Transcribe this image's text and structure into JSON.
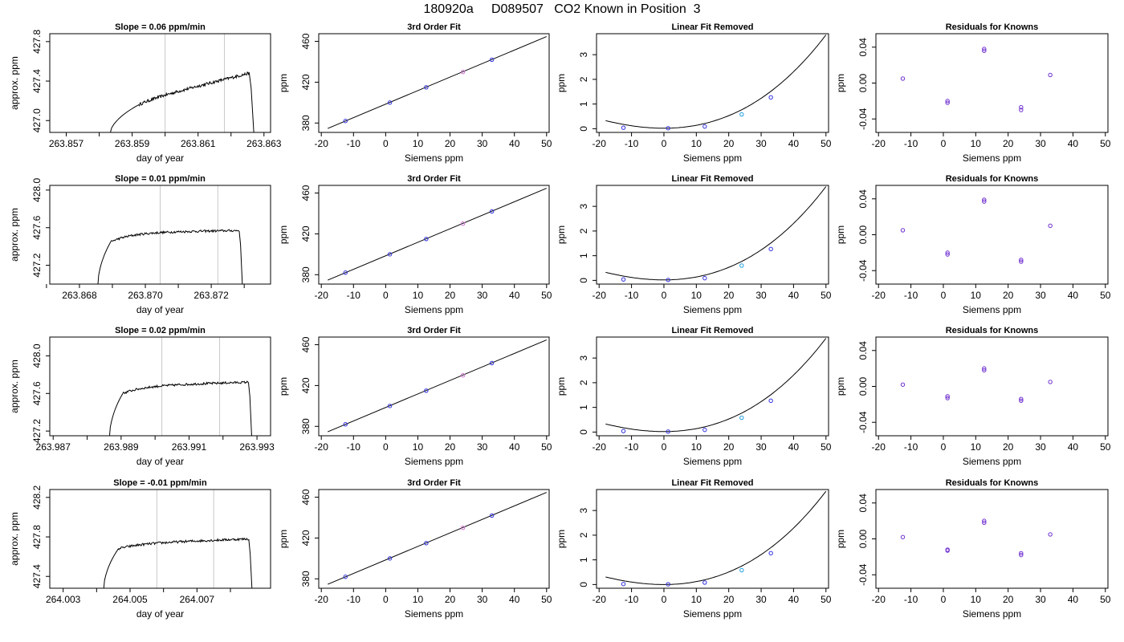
{
  "page": {
    "title": "180920a     D089507   CO2 Known in Position  3"
  },
  "chart_data": [
    {
      "id": "r1-series",
      "type": "line",
      "title": "Slope =  0.06  ppm/min",
      "xlabel": "day of year",
      "ylabel": "approx. ppm",
      "xlim": [
        263.8565,
        263.8632
      ],
      "ylim": [
        426.88,
        427.88
      ],
      "xticks": [
        "263.857",
        "263.858",
        "263.859",
        "263.860",
        "263.861",
        "263.862",
        "263.863"
      ],
      "xtick_labels": [
        "263.857",
        "",
        "263.859",
        "",
        "263.861",
        "",
        "263.863"
      ],
      "yticks": [
        "427.0",
        "427.4",
        "427.8"
      ],
      "vlines": [
        263.86,
        263.8618
      ],
      "trace": {
        "start": 263.8583,
        "rise_end": 263.8592,
        "plateau_end": 263.86255,
        "end": 263.8627,
        "y_low": 426.83,
        "y_rise": 427.16,
        "y_plateau_start": 427.2,
        "y_plateau_end": 427.48,
        "y_drop": 426.83,
        "noise": 0.015
      }
    },
    {
      "id": "r1-fit",
      "type": "line",
      "title": "3rd Order Fit",
      "xlabel": "Siemens ppm",
      "ylabel": "ppm",
      "xlim": [
        -20.8,
        50.8
      ],
      "ylim": [
        370.8,
        467.5
      ],
      "xticks": [
        "-20",
        "-10",
        "0",
        "10",
        "20",
        "30",
        "40",
        "50"
      ],
      "yticks": [
        "380",
        "420",
        "460"
      ],
      "line": {
        "x1": -18,
        "y1": 374.7,
        "x2": 50,
        "y2": 464.7
      },
      "points": [
        {
          "x": -12.5,
          "y": 382,
          "color": "#3030e0"
        },
        {
          "x": 1.3,
          "y": 400,
          "color": "#3030e0"
        },
        {
          "x": 12.6,
          "y": 415,
          "color": "#3030e0"
        },
        {
          "x": 24,
          "y": 430,
          "color": "#d070d0"
        },
        {
          "x": 33,
          "y": 442,
          "color": "#3030e0"
        }
      ]
    },
    {
      "id": "r1-linear",
      "type": "line",
      "title": "Linear Fit Removed",
      "xlabel": "Siemens ppm",
      "ylabel": "ppm",
      "xlim": [
        -20.8,
        50.8
      ],
      "ylim": [
        -0.15,
        3.85
      ],
      "xticks": [
        "-20",
        "-10",
        "0",
        "10",
        "20",
        "30",
        "40",
        "50"
      ],
      "yticks": [
        "0",
        "1",
        "2",
        "3"
      ],
      "curve": {
        "a": 0.02,
        "b": 0.0001,
        "c": 0.0011,
        "d": 8.2e-06,
        "x_start": -18,
        "x_end": 50
      },
      "points": [
        {
          "x": -12.5,
          "y": 0.04,
          "color": "#3030e0"
        },
        {
          "x": 1.3,
          "y": 0.02,
          "color": "#3030e0"
        },
        {
          "x": 12.6,
          "y": 0.09,
          "color": "#3030e0"
        },
        {
          "x": 24,
          "y": 0.58,
          "color": "#20a0e0"
        },
        {
          "x": 33,
          "y": 1.27,
          "color": "#3030e0"
        }
      ]
    },
    {
      "id": "r1-resid",
      "type": "scatter",
      "title": "Residuals for Knowns",
      "xlabel": "Siemens ppm",
      "ylabel": "ppm",
      "xlim": [
        -20.8,
        50.8
      ],
      "ylim": [
        -0.055,
        0.055
      ],
      "xticks": [
        "-20",
        "-10",
        "0",
        "10",
        "20",
        "30",
        "40",
        "50"
      ],
      "yticks": [
        "-0.04",
        "0.00",
        "0.04"
      ],
      "points": [
        {
          "x": -12.5,
          "y": 0.005,
          "color": "#7030d0"
        },
        {
          "x": 1.3,
          "y": -0.02,
          "color": "#7030d0"
        },
        {
          "x": 1.3,
          "y": -0.022,
          "color": "#7030d0"
        },
        {
          "x": 12.6,
          "y": 0.036,
          "color": "#7030d0"
        },
        {
          "x": 12.6,
          "y": 0.038,
          "color": "#7030d0"
        },
        {
          "x": 24,
          "y": -0.027,
          "color": "#7030d0"
        },
        {
          "x": 24,
          "y": -0.03,
          "color": "#7030d0"
        },
        {
          "x": 33,
          "y": 0.009,
          "color": "#7030d0"
        }
      ]
    },
    {
      "id": "r2-series",
      "type": "line",
      "title": "Slope =  0.01  ppm/min",
      "xlabel": "day of year",
      "ylabel": "approx. ppm",
      "xlim": [
        263.8671,
        263.8738
      ],
      "ylim": [
        427.0,
        428.05
      ],
      "xticks": [
        "263.867",
        "263.868",
        "263.869",
        "263.870",
        "263.871",
        "263.872",
        "263.873"
      ],
      "xtick_labels": [
        "",
        "263.868",
        "",
        "263.870",
        "",
        "263.872",
        ""
      ],
      "yticks": [
        "427.2",
        "427.6",
        "428.0"
      ],
      "vlines": [
        263.87045,
        263.8722
      ],
      "trace": {
        "start": 263.86855,
        "rise_end": 263.86895,
        "plateau_end": 263.87285,
        "end": 263.87295,
        "y_low": 426.95,
        "y_rise": 427.45,
        "y_plateau_start": 427.55,
        "y_plateau_end": 427.57,
        "y_drop": 426.95,
        "noise": 0.012
      }
    },
    {
      "id": "r2-fit",
      "type": "line",
      "title": "3rd Order Fit",
      "xlabel": "Siemens ppm",
      "ylabel": "ppm",
      "xlim": [
        -20.8,
        50.8
      ],
      "ylim": [
        370.8,
        467.5
      ],
      "xticks": [
        "-20",
        "-10",
        "0",
        "10",
        "20",
        "30",
        "40",
        "50"
      ],
      "yticks": [
        "380",
        "420",
        "460"
      ],
      "line": {
        "x1": -18,
        "y1": 374.7,
        "x2": 50,
        "y2": 464.7
      },
      "points": [
        {
          "x": -12.5,
          "y": 382,
          "color": "#3030e0"
        },
        {
          "x": 1.3,
          "y": 400,
          "color": "#3030e0"
        },
        {
          "x": 12.6,
          "y": 415,
          "color": "#3030e0"
        },
        {
          "x": 24,
          "y": 430,
          "color": "#d070d0"
        },
        {
          "x": 33,
          "y": 442,
          "color": "#3030e0"
        }
      ]
    },
    {
      "id": "r2-linear",
      "type": "line",
      "title": "Linear Fit Removed",
      "xlabel": "Siemens ppm",
      "ylabel": "ppm",
      "xlim": [
        -20.8,
        50.8
      ],
      "ylim": [
        -0.15,
        3.85
      ],
      "xticks": [
        "-20",
        "-10",
        "0",
        "10",
        "20",
        "30",
        "40",
        "50"
      ],
      "yticks": [
        "0",
        "1",
        "2",
        "3"
      ],
      "curve": {
        "a": 0.02,
        "b": 0.0001,
        "c": 0.0011,
        "d": 8.2e-06,
        "x_start": -18,
        "x_end": 50
      },
      "points": [
        {
          "x": -12.5,
          "y": 0.04,
          "color": "#3030e0"
        },
        {
          "x": 1.3,
          "y": 0.02,
          "color": "#3030e0"
        },
        {
          "x": 12.6,
          "y": 0.09,
          "color": "#3030e0"
        },
        {
          "x": 24,
          "y": 0.6,
          "color": "#20a0e0"
        },
        {
          "x": 33,
          "y": 1.27,
          "color": "#3030e0"
        }
      ]
    },
    {
      "id": "r2-resid",
      "type": "scatter",
      "title": "Residuals for Knowns",
      "xlabel": "Siemens ppm",
      "ylabel": "ppm",
      "xlim": [
        -20.8,
        50.8
      ],
      "ylim": [
        -0.055,
        0.055
      ],
      "xticks": [
        "-20",
        "-10",
        "0",
        "10",
        "20",
        "30",
        "40",
        "50"
      ],
      "yticks": [
        "-0.04",
        "0.00",
        "0.04"
      ],
      "points": [
        {
          "x": -12.5,
          "y": 0.005,
          "color": "#7030d0"
        },
        {
          "x": 1.3,
          "y": -0.02,
          "color": "#7030d0"
        },
        {
          "x": 1.3,
          "y": -0.022,
          "color": "#7030d0"
        },
        {
          "x": 12.6,
          "y": 0.037,
          "color": "#7030d0"
        },
        {
          "x": 12.6,
          "y": 0.039,
          "color": "#7030d0"
        },
        {
          "x": 24,
          "y": -0.028,
          "color": "#7030d0"
        },
        {
          "x": 24,
          "y": -0.03,
          "color": "#7030d0"
        },
        {
          "x": 33,
          "y": 0.01,
          "color": "#7030d0"
        }
      ]
    },
    {
      "id": "r3-series",
      "type": "line",
      "title": "Slope =  0.02  ppm/min",
      "xlabel": "day of year",
      "ylabel": "approx. ppm",
      "xlim": [
        263.9869,
        263.9934
      ],
      "ylim": [
        427.15,
        428.2
      ],
      "xticks": [
        "263.987",
        "263.988",
        "263.989",
        "263.990",
        "263.991",
        "263.992",
        "263.993"
      ],
      "xtick_labels": [
        "263.987",
        "",
        "263.989",
        "",
        "263.991",
        "",
        "263.993"
      ],
      "yticks": [
        "427.2",
        "427.6",
        "428.0"
      ],
      "vlines": [
        263.9902,
        263.9919
      ],
      "trace": {
        "start": 263.98865,
        "rise_end": 263.98905,
        "plateau_end": 263.99275,
        "end": 263.99285,
        "y_low": 427.1,
        "y_rise": 427.6,
        "y_plateau_start": 427.68,
        "y_plateau_end": 427.72,
        "y_drop": 427.1,
        "noise": 0.012
      }
    },
    {
      "id": "r3-fit",
      "type": "line",
      "title": "3rd Order Fit",
      "xlabel": "Siemens ppm",
      "ylabel": "ppm",
      "xlim": [
        -20.8,
        50.8
      ],
      "ylim": [
        370.8,
        467.5
      ],
      "xticks": [
        "-20",
        "-10",
        "0",
        "10",
        "20",
        "30",
        "40",
        "50"
      ],
      "yticks": [
        "380",
        "420",
        "460"
      ],
      "line": {
        "x1": -18,
        "y1": 374.7,
        "x2": 50,
        "y2": 464.7
      },
      "points": [
        {
          "x": -12.5,
          "y": 382,
          "color": "#3030e0"
        },
        {
          "x": 1.3,
          "y": 400,
          "color": "#3030e0"
        },
        {
          "x": 12.6,
          "y": 415,
          "color": "#3030e0"
        },
        {
          "x": 24,
          "y": 430,
          "color": "#d070d0"
        },
        {
          "x": 33,
          "y": 442,
          "color": "#3030e0"
        }
      ]
    },
    {
      "id": "r3-linear",
      "type": "line",
      "title": "Linear Fit Removed",
      "xlabel": "Siemens ppm",
      "ylabel": "ppm",
      "xlim": [
        -20.8,
        50.8
      ],
      "ylim": [
        -0.15,
        3.85
      ],
      "xticks": [
        "-20",
        "-10",
        "0",
        "10",
        "20",
        "30",
        "40",
        "50"
      ],
      "yticks": [
        "0",
        "1",
        "2",
        "3"
      ],
      "curve": {
        "a": 0.02,
        "b": 0.0001,
        "c": 0.0011,
        "d": 8.2e-06,
        "x_start": -18,
        "x_end": 50
      },
      "points": [
        {
          "x": -12.5,
          "y": 0.04,
          "color": "#3030e0"
        },
        {
          "x": 1.3,
          "y": 0.02,
          "color": "#3030e0"
        },
        {
          "x": 12.6,
          "y": 0.09,
          "color": "#3030e0"
        },
        {
          "x": 24,
          "y": 0.58,
          "color": "#20a0e0"
        },
        {
          "x": 33,
          "y": 1.27,
          "color": "#3030e0"
        }
      ]
    },
    {
      "id": "r3-resid",
      "type": "scatter",
      "title": "Residuals for Knowns",
      "xlabel": "Siemens ppm",
      "ylabel": "ppm",
      "xlim": [
        -20.8,
        50.8
      ],
      "ylim": [
        -0.055,
        0.055
      ],
      "xticks": [
        "-20",
        "-10",
        "0",
        "10",
        "20",
        "30",
        "40",
        "50"
      ],
      "yticks": [
        "-0.04",
        "0.00",
        "0.04"
      ],
      "points": [
        {
          "x": -12.5,
          "y": 0.002,
          "color": "#7030d0"
        },
        {
          "x": 1.3,
          "y": -0.011,
          "color": "#7030d0"
        },
        {
          "x": 1.3,
          "y": -0.013,
          "color": "#7030d0"
        },
        {
          "x": 12.6,
          "y": 0.018,
          "color": "#7030d0"
        },
        {
          "x": 12.6,
          "y": 0.02,
          "color": "#7030d0"
        },
        {
          "x": 24,
          "y": -0.014,
          "color": "#7030d0"
        },
        {
          "x": 24,
          "y": -0.016,
          "color": "#7030d0"
        },
        {
          "x": 33,
          "y": 0.005,
          "color": "#7030d0"
        }
      ]
    },
    {
      "id": "r4-series",
      "type": "line",
      "title": "Slope =  -0.01  ppm/min",
      "xlabel": "day of year",
      "ylabel": "approx. ppm",
      "xlim": [
        264.0026,
        264.0092
      ],
      "ylim": [
        427.28,
        428.28
      ],
      "xticks": [
        "264.003",
        "264.004",
        "264.005",
        "264.006",
        "264.007",
        "264.008"
      ],
      "xtick_labels": [
        "264.003",
        "",
        "264.005",
        "",
        "264.007",
        ""
      ],
      "yticks": [
        "427.4",
        "427.8",
        "428.2"
      ],
      "vlines": [
        264.0058,
        264.0075
      ],
      "trace": {
        "start": 264.0042,
        "rise_end": 264.00465,
        "plateau_end": 264.00855,
        "end": 264.00865,
        "y_low": 427.23,
        "y_rise": 427.68,
        "y_plateau_start": 427.73,
        "y_plateau_end": 427.78,
        "y_drop": 427.23,
        "noise": 0.012
      }
    },
    {
      "id": "r4-fit",
      "type": "line",
      "title": "3rd Order Fit",
      "xlabel": "Siemens ppm",
      "ylabel": "ppm",
      "xlim": [
        -20.8,
        50.8
      ],
      "ylim": [
        370.8,
        467.5
      ],
      "xticks": [
        "-20",
        "-10",
        "0",
        "10",
        "20",
        "30",
        "40",
        "50"
      ],
      "yticks": [
        "380",
        "420",
        "460"
      ],
      "line": {
        "x1": -18,
        "y1": 374.7,
        "x2": 50,
        "y2": 464.7
      },
      "points": [
        {
          "x": -12.5,
          "y": 382,
          "color": "#3030e0"
        },
        {
          "x": 1.3,
          "y": 400,
          "color": "#3030e0"
        },
        {
          "x": 12.6,
          "y": 415,
          "color": "#3030e0"
        },
        {
          "x": 24,
          "y": 430,
          "color": "#d070d0"
        },
        {
          "x": 33,
          "y": 442,
          "color": "#3030e0"
        }
      ]
    },
    {
      "id": "r4-linear",
      "type": "line",
      "title": "Linear Fit Removed",
      "xlabel": "Siemens ppm",
      "ylabel": "ppm",
      "xlim": [
        -20.8,
        50.8
      ],
      "ylim": [
        -0.15,
        3.85
      ],
      "xticks": [
        "-20",
        "-10",
        "0",
        "10",
        "20",
        "30",
        "40",
        "50"
      ],
      "yticks": [
        "0",
        "1",
        "2",
        "3"
      ],
      "curve": {
        "a": 0.0,
        "b": 0.0001,
        "c": 0.0011,
        "d": 8.2e-06,
        "x_start": -18,
        "x_end": 50
      },
      "points": [
        {
          "x": -12.5,
          "y": 0.02,
          "color": "#3030e0"
        },
        {
          "x": 1.3,
          "y": 0.01,
          "color": "#3030e0"
        },
        {
          "x": 12.6,
          "y": 0.08,
          "color": "#3030e0"
        },
        {
          "x": 24,
          "y": 0.58,
          "color": "#20a0e0"
        },
        {
          "x": 33,
          "y": 1.27,
          "color": "#3030e0"
        }
      ]
    },
    {
      "id": "r4-resid",
      "type": "scatter",
      "title": "Residuals for Knowns",
      "xlabel": "Siemens ppm",
      "ylabel": "ppm",
      "xlim": [
        -20.8,
        50.8
      ],
      "ylim": [
        -0.055,
        0.055
      ],
      "xticks": [
        "-20",
        "-10",
        "0",
        "10",
        "20",
        "30",
        "40",
        "50"
      ],
      "yticks": [
        "-0.04",
        "0.00",
        "0.04"
      ],
      "points": [
        {
          "x": -12.5,
          "y": 0.002,
          "color": "#7030d0"
        },
        {
          "x": 1.3,
          "y": -0.012,
          "color": "#7030d0"
        },
        {
          "x": 1.3,
          "y": -0.013,
          "color": "#7030d0"
        },
        {
          "x": 12.6,
          "y": 0.018,
          "color": "#7030d0"
        },
        {
          "x": 12.6,
          "y": 0.02,
          "color": "#7030d0"
        },
        {
          "x": 24,
          "y": -0.016,
          "color": "#7030d0"
        },
        {
          "x": 24,
          "y": -0.018,
          "color": "#7030d0"
        },
        {
          "x": 33,
          "y": 0.005,
          "color": "#7030d0"
        }
      ]
    }
  ]
}
